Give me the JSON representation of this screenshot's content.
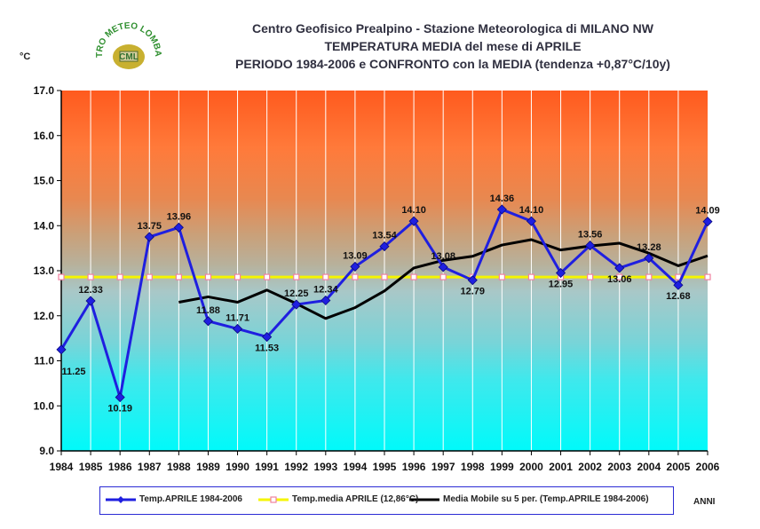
{
  "title": {
    "line1": "Centro Geofisico Prealpino - Stazione Meteorologica di MILANO NW",
    "line2": "TEMPERATURA MEDIA del mese di APRILE",
    "line3": "PERIODO 1984-2006 e CONFRONTO con la MEDIA (tendenza +0,87°C/10y)"
  },
  "logo": {
    "arc_text": "CENTRO METEO LOMBARDO",
    "center_text": "CML",
    "color": "#2f8f2f"
  },
  "y_unit": "°C",
  "x_axis_title": "ANNI",
  "legend": {
    "series_main": "Temp.APRILE 1984-2006",
    "series_mean": "Temp.media APRILE (12,86°C)",
    "series_moving": "Media Mobile su 5 per. (Temp.APRILE 1984-2006)"
  },
  "chart_data": {
    "type": "line",
    "title": "TEMPERATURA MEDIA del mese di APRILE",
    "xlabel": "ANNI",
    "ylabel": "°C",
    "ylim": [
      9.0,
      17.0
    ],
    "yticks": [
      "9.0",
      "10.0",
      "11.0",
      "12.0",
      "13.0",
      "14.0",
      "15.0",
      "16.0",
      "17.0"
    ],
    "x": [
      "1984",
      "1985",
      "1986",
      "1987",
      "1988",
      "1989",
      "1990",
      "1991",
      "1992",
      "1993",
      "1994",
      "1995",
      "1996",
      "1997",
      "1998",
      "1999",
      "2000",
      "2001",
      "2002",
      "2003",
      "2004",
      "2005",
      "2006"
    ],
    "grid": "vertical",
    "legend_position": "bottom",
    "series": [
      {
        "name": "Temp.APRILE 1984-2006",
        "color": "#1f1fe0",
        "values": [
          11.25,
          12.33,
          10.19,
          13.75,
          13.96,
          11.88,
          11.71,
          11.53,
          12.25,
          12.34,
          13.09,
          13.54,
          14.1,
          13.08,
          12.79,
          14.36,
          14.1,
          12.95,
          13.56,
          13.06,
          13.28,
          12.68,
          14.09
        ],
        "labels": [
          "11.25",
          "12.33",
          "10.19",
          "13.75",
          "13.96",
          "11.88",
          "11.71",
          "11.53",
          "12.25",
          "12.34",
          "13.09",
          "13.54",
          "14.10",
          "13.08",
          "12.79",
          "14.36",
          "14.10",
          "12.95",
          "13.56",
          "13.06",
          "13.28",
          "12.68",
          "14.09"
        ]
      },
      {
        "name": "Temp.media APRILE (12,86°C)",
        "color": "#f5f500",
        "marker_color": "#f080a0",
        "values": [
          12.86,
          12.86,
          12.86,
          12.86,
          12.86,
          12.86,
          12.86,
          12.86,
          12.86,
          12.86,
          12.86,
          12.86,
          12.86,
          12.86,
          12.86,
          12.86,
          12.86,
          12.86,
          12.86,
          12.86,
          12.86,
          12.86,
          12.86
        ]
      },
      {
        "name": "Media Mobile su 5 per. (Temp.APRILE 1984-2006)",
        "color": "#000000",
        "values": [
          null,
          null,
          null,
          null,
          12.3,
          12.42,
          12.3,
          12.57,
          12.27,
          11.94,
          12.18,
          12.55,
          13.06,
          13.23,
          13.32,
          13.57,
          13.69,
          13.46,
          13.55,
          13.61,
          13.39,
          13.11,
          13.33
        ]
      }
    ]
  }
}
